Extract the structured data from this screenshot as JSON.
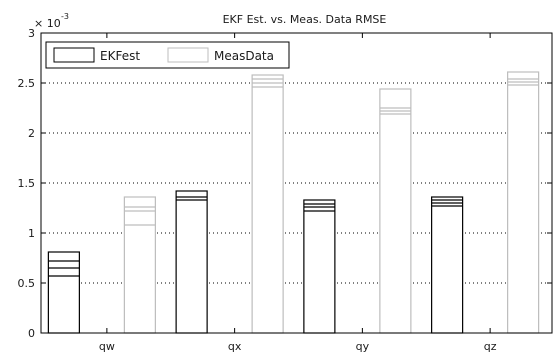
{
  "chart_data": {
    "type": "bar",
    "title": "EKF Est. vs. Meas. Data RMSE",
    "xlabel": "",
    "ylabel": "",
    "y_multiplier_label": "× 10",
    "y_multiplier_exponent": "-3",
    "categories": [
      "qw",
      "qx",
      "qy",
      "qz"
    ],
    "ylim": [
      0,
      3
    ],
    "yticks": [
      0,
      0.5,
      1,
      1.5,
      2,
      2.5,
      3
    ],
    "yticklabels": [
      "0",
      "0.5",
      "1",
      "1.5",
      "2",
      "2.5",
      "3"
    ],
    "grid": "horizontal dotted",
    "legend_position": "top-left",
    "series": [
      {
        "name": "EKFest",
        "color": "#000000",
        "values": [
          0.81,
          1.42,
          1.33,
          1.36
        ],
        "inner_lines": [
          [
            0.57,
            0.65,
            0.72
          ],
          [
            1.33,
            1.36
          ],
          [
            1.22,
            1.26,
            1.29
          ],
          [
            1.27,
            1.3,
            1.33
          ]
        ]
      },
      {
        "name": "MeasData",
        "color": "#bdbdbd",
        "values": [
          1.36,
          2.58,
          2.44,
          2.61
        ],
        "inner_lines": [
          [
            1.08,
            1.22,
            1.26
          ],
          [
            2.46,
            2.5,
            2.54
          ],
          [
            2.19,
            2.22,
            2.25
          ],
          [
            2.48,
            2.51,
            2.54
          ]
        ]
      }
    ]
  }
}
